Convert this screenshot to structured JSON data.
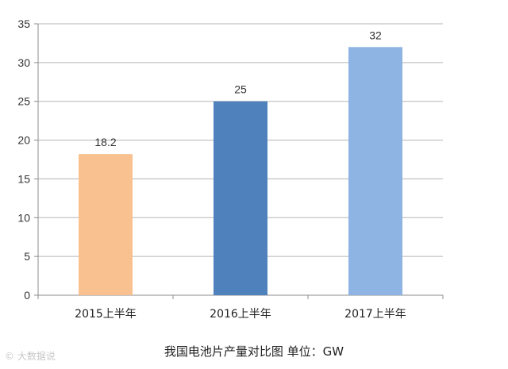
{
  "chart_data": {
    "type": "bar",
    "categories": [
      "2015上半年",
      "2016上半年",
      "2017上半年"
    ],
    "values": [
      18.2,
      25,
      32
    ],
    "data_labels": [
      "18.2",
      "25",
      "32"
    ],
    "colors": [
      "#F9C18F",
      "#4F81BD",
      "#8DB4E2"
    ],
    "ylim": [
      0,
      35
    ],
    "yticks": [
      0,
      5,
      10,
      15,
      20,
      25,
      30,
      35
    ],
    "grid": true,
    "caption": "我国电池片产量对比图    单位：GW"
  },
  "watermark": "© 大数据说"
}
